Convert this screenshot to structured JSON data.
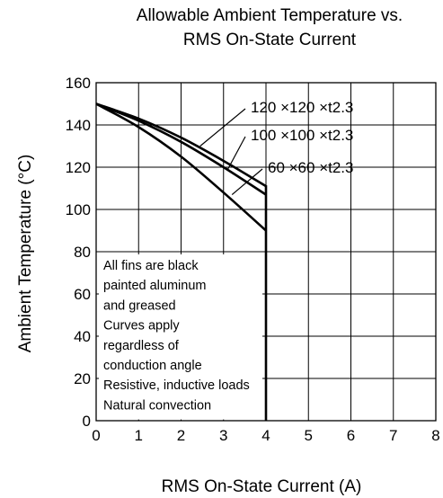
{
  "chart_data": {
    "type": "line",
    "title_lines": [
      "Allowable Ambient Temperature vs.",
      "RMS On-State Current"
    ],
    "xlabel": "RMS On-State Current  (A)",
    "ylabel": "Ambient Temperature (°C)",
    "xlim": [
      0,
      8
    ],
    "ylim": [
      0,
      160
    ],
    "xticks": [
      0,
      1,
      2,
      3,
      4,
      5,
      6,
      7,
      8
    ],
    "yticks": [
      0,
      20,
      40,
      60,
      80,
      100,
      120,
      140,
      160
    ],
    "grid": true,
    "series": [
      {
        "name": "120 ×120 ×t2.3",
        "x": [
          0,
          1,
          2,
          3,
          4
        ],
        "y": [
          150,
          143,
          134,
          123,
          111
        ]
      },
      {
        "name": "100 ×100 ×t2.3",
        "x": [
          0,
          1,
          2,
          3,
          4
        ],
        "y": [
          150,
          142,
          132,
          120,
          107
        ]
      },
      {
        "name": "60 ×60 ×t2.3",
        "x": [
          0,
          1,
          2,
          3,
          4
        ],
        "y": [
          150,
          139,
          125,
          108,
          90
        ]
      }
    ],
    "annotation_lines": [
      "All fins are black",
      "painted aluminum",
      "and greased",
      "Curves apply",
      "regardless of",
      "conduction angle",
      "Resistive, inductive loads",
      "Natural convection"
    ]
  }
}
